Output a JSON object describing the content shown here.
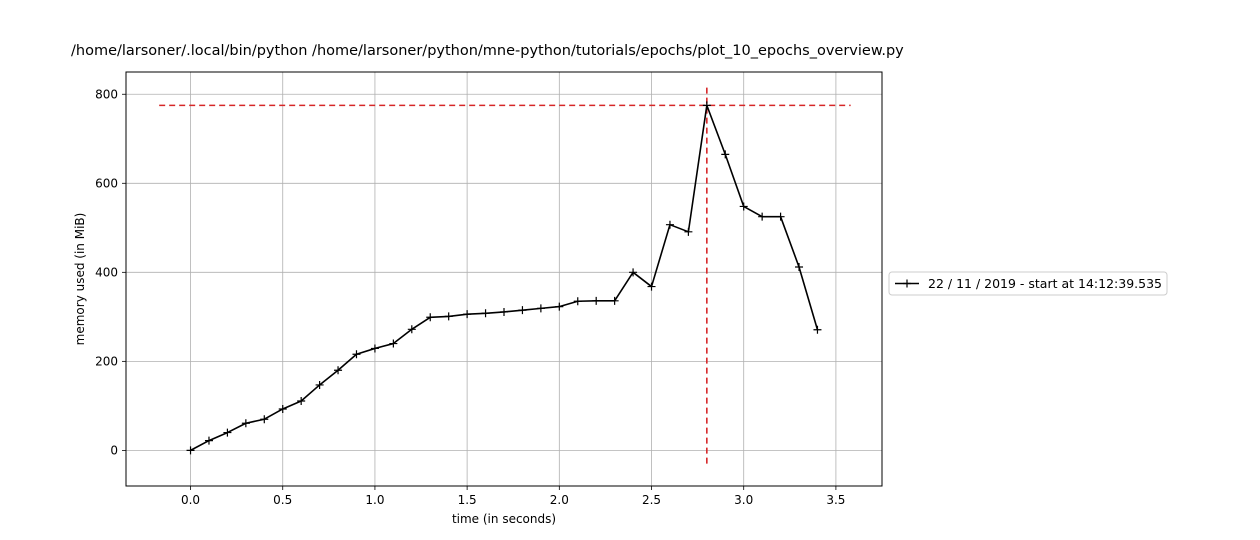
{
  "chart_data": {
    "type": "line",
    "title": "/home/larsoner/.local/bin/python /home/larsoner/python/mne-python/tutorials/epochs/plot_10_epochs_overview.py",
    "xlabel": "time (in seconds)",
    "ylabel": "memory used (in MiB)",
    "xlim": [
      -0.35,
      3.75
    ],
    "ylim": [
      -80,
      850
    ],
    "xticks": [
      0.0,
      0.5,
      1.0,
      1.5,
      2.0,
      2.5,
      3.0,
      3.5
    ],
    "xtick_labels": [
      "0.0",
      "0.5",
      "1.0",
      "1.5",
      "2.0",
      "2.5",
      "3.0",
      "3.5"
    ],
    "yticks": [
      0,
      200,
      400,
      600,
      800
    ],
    "ytick_labels": [
      "0",
      "200",
      "400",
      "600",
      "800"
    ],
    "grid": true,
    "legend_position": "right, outside plot",
    "series": [
      {
        "name": "22 / 11 / 2019 - start at 14:12:39.535",
        "color": "#000000",
        "marker": "plus",
        "x": [
          0.0,
          0.1,
          0.2,
          0.3,
          0.4,
          0.5,
          0.6,
          0.7,
          0.8,
          0.9,
          1.0,
          1.1,
          1.2,
          1.3,
          1.4,
          1.5,
          1.6,
          1.7,
          1.8,
          1.9,
          2.0,
          2.1,
          2.2,
          2.3,
          2.4,
          2.5,
          2.6,
          2.7,
          2.8,
          2.9,
          3.0,
          3.1,
          3.2,
          3.3,
          3.4
        ],
        "y": [
          0,
          22,
          40,
          61,
          70,
          93,
          111,
          147,
          180,
          216,
          229,
          240,
          272,
          299,
          301,
          306,
          308,
          311,
          315,
          319,
          323,
          335,
          336,
          336,
          400,
          368,
          507,
          491,
          775,
          665,
          548,
          525,
          525,
          412,
          271
        ]
      }
    ],
    "reference_lines": {
      "color": "#d62728",
      "style": "dashed",
      "horizontal": {
        "y": 775,
        "x_from": -0.17,
        "x_to": 3.58
      },
      "vertical": {
        "x": 2.8,
        "y_from": -38,
        "y_to": 815
      }
    }
  }
}
